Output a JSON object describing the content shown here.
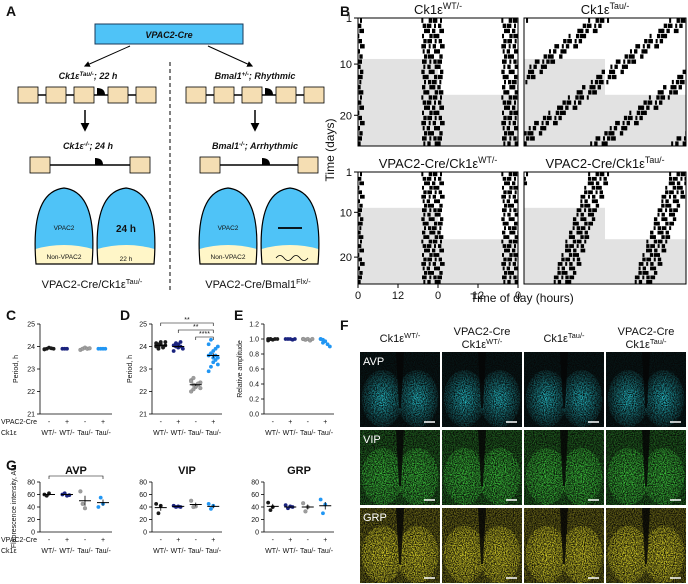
{
  "panel_labels": {
    "a": "A",
    "b": "B",
    "c": "C",
    "d": "D",
    "e": "E",
    "f": "F",
    "g": "G"
  },
  "schematic": {
    "driver": "VPAC2-Cre",
    "left": {
      "cross": [
        "Ck1ε",
        "Tau/-",
        "; 22 h"
      ],
      "result": [
        "Ck1ε",
        "-/-",
        "; 24 h"
      ],
      "scn": {
        "top": "VPAC2",
        "top_period": "24 h",
        "bottom": "Non-VPAC2",
        "bottom_period": "22 h"
      },
      "caption": [
        "VPAC2-Cre/Ck1ε",
        "Tau/-"
      ]
    },
    "right": {
      "cross": [
        "Bmal1",
        "+/-",
        "; Rhythmic"
      ],
      "result": [
        "Bmal1",
        "-/-",
        "; Arrhythmic"
      ],
      "scn": {
        "top": "VPAC2",
        "bottom": "Non-VPAC2"
      },
      "caption": [
        "VPAC2-Cre/Bmal1",
        "Flx/-"
      ]
    }
  },
  "actograms": {
    "titles": [
      [
        "Ck1ε",
        "WT/-"
      ],
      [
        "Ck1ε",
        "Tau/-"
      ],
      [
        "VPAC2-Cre/Ck1ε",
        "WT/-"
      ],
      [
        "VPAC2-Cre/Ck1ε",
        "Tau/-"
      ]
    ],
    "title_colors": [
      "#1a1a1a",
      "#8a8a8a",
      "#1a237e",
      "#2196f3"
    ],
    "ylabel": "Time (days)",
    "ylim": [
      1,
      26
    ],
    "yticks": [
      1,
      10,
      20
    ],
    "xlabel": "Time of day (hours)",
    "xlim": [
      0,
      48
    ],
    "xticks": [
      0,
      12,
      {
        "value": 24,
        "label": "0"
      },
      {
        "value": 36,
        "label": "12"
      },
      {
        "value": 48,
        "label": "0"
      }
    ]
  },
  "genotype": {
    "rows": [
      "VPAC2-Cre",
      "Ck1ε"
    ],
    "cre": [
      "-",
      "+",
      "-",
      "+"
    ],
    "ck1": [
      "WT/-",
      "WT/-",
      "Tau/-",
      "Tau/-"
    ]
  },
  "chart_data": [
    {
      "type": "dot",
      "ylabel": "Period, h",
      "ylim": [
        21,
        25
      ],
      "yticks": [
        21,
        22,
        23,
        24,
        25
      ],
      "series": [
        {
          "color": "#1a1a1a",
          "values": [
            23.88,
            23.9,
            23.95,
            23.92,
            23.9,
            23.87
          ]
        },
        {
          "color": "#1a237e",
          "values": [
            23.9,
            23.9,
            23.9
          ]
        },
        {
          "color": "#9e9e9e",
          "values": [
            23.85,
            23.9,
            23.95,
            23.9,
            23.92
          ]
        },
        {
          "color": "#2196f3",
          "values": [
            23.9,
            23.9,
            23.9,
            23.9
          ]
        }
      ]
    },
    {
      "type": "dot",
      "ylabel": "Period, h",
      "ylim": [
        21,
        25
      ],
      "yticks": [
        21,
        22,
        23,
        24,
        25
      ],
      "annotations": [
        "**",
        "**",
        "****"
      ],
      "series": [
        {
          "color": "#1a1a1a",
          "values": [
            24.0,
            24.1,
            24.2,
            23.95,
            24.05,
            24.15,
            23.9,
            24.1,
            24.0,
            24.2,
            24.05,
            23.98
          ],
          "mean": 24.05,
          "sem": 0.05
        },
        {
          "color": "#1a237e",
          "values": [
            23.8,
            24.0,
            24.1,
            24.2,
            23.9,
            24.05,
            24.15,
            23.95,
            24.0
          ],
          "mean": 24.0,
          "sem": 0.05
        },
        {
          "color": "#9e9e9e",
          "values": [
            22.0,
            22.1,
            22.2,
            22.3,
            22.4,
            22.5,
            22.6,
            22.25,
            22.35,
            22.15,
            22.45,
            22.3
          ],
          "mean": 22.3,
          "sem": 0.05
        },
        {
          "color": "#2196f3",
          "values": [
            22.9,
            23.1,
            23.3,
            23.4,
            23.5,
            23.6,
            23.7,
            23.8,
            23.9,
            24.0,
            24.1,
            24.3,
            23.5,
            23.6,
            23.2
          ],
          "mean": 23.6,
          "sem": 0.1
        }
      ]
    },
    {
      "type": "dot",
      "ylabel": "Relative amplitude",
      "ylim": [
        0,
        1.2
      ],
      "yticks": [
        {
          "value": 0,
          "label": "0.0"
        },
        0.2,
        0.4,
        0.6,
        0.8,
        {
          "value": 1,
          "label": "1.0"
        },
        1.2
      ],
      "series": [
        {
          "color": "#1a1a1a",
          "values": [
            1,
            1,
            0.99,
            1,
            1,
            0.98,
            1
          ]
        },
        {
          "color": "#1a237e",
          "values": [
            1,
            1,
            1,
            0.99,
            1
          ]
        },
        {
          "color": "#9e9e9e",
          "values": [
            1,
            0.99,
            1,
            0.98,
            1,
            1
          ]
        },
        {
          "color": "#2196f3",
          "values": [
            1,
            0.99,
            0.97,
            0.93,
            0.9,
            1,
            0.95
          ]
        }
      ]
    },
    {
      "type": "dot",
      "title": "AVP",
      "ylabel": "Fluorescence intensity, AU",
      "ylim": [
        0,
        80
      ],
      "yticks": [
        0,
        20,
        40,
        60,
        80
      ],
      "annotations": [
        "*"
      ],
      "series": [
        {
          "color": "#1a1a1a",
          "values": [
            60,
            58,
            62
          ],
          "mean": 60,
          "sem": 2
        },
        {
          "color": "#1a237e",
          "values": [
            60,
            62,
            58,
            59
          ],
          "mean": 60,
          "sem": 1
        },
        {
          "color": "#9e9e9e",
          "values": [
            65,
            45,
            38
          ],
          "mean": 50,
          "sem": 8
        },
        {
          "color": "#2196f3",
          "values": [
            40,
            55,
            45
          ],
          "mean": 47,
          "sem": 5
        }
      ]
    },
    {
      "type": "dot",
      "title": "VIP",
      "ylim": [
        0,
        80
      ],
      "yticks": [
        0,
        20,
        40,
        60,
        80
      ],
      "series": [
        {
          "color": "#1a1a1a",
          "values": [
            45,
            30,
            42
          ],
          "mean": 39,
          "sem": 5
        },
        {
          "color": "#1a237e",
          "values": [
            42,
            40,
            41,
            40
          ],
          "mean": 41,
          "sem": 1
        },
        {
          "color": "#9e9e9e",
          "values": [
            50,
            40,
            41
          ],
          "mean": 44,
          "sem": 3
        },
        {
          "color": "#2196f3",
          "values": [
            45,
            37,
            42
          ],
          "mean": 41,
          "sem": 3
        }
      ]
    },
    {
      "type": "dot",
      "title": "GRP",
      "ylim": [
        0,
        80
      ],
      "yticks": [
        0,
        20,
        40,
        60,
        80
      ],
      "series": [
        {
          "color": "#1a1a1a",
          "values": [
            47,
            35,
            40
          ],
          "mean": 41,
          "sem": 4
        },
        {
          "color": "#1a237e",
          "values": [
            43,
            38,
            41,
            40
          ],
          "mean": 40,
          "sem": 1
        },
        {
          "color": "#9e9e9e",
          "values": [
            46,
            33,
            40
          ],
          "mean": 40,
          "sem": 4
        },
        {
          "color": "#2196f3",
          "values": [
            52,
            30,
            44
          ],
          "mean": 42,
          "sem": 6
        }
      ]
    }
  ],
  "micrographs": {
    "columns": [
      {
        "genotype": [
          "Ck1ε",
          "WT/-"
        ]
      },
      {
        "driver": "VPAC2-Cre",
        "genotype": [
          "Ck1ε",
          "WT/-"
        ]
      },
      {
        "genotype": [
          "Ck1ε",
          "Tau/-"
        ]
      },
      {
        "driver": "VPAC2-Cre",
        "genotype": [
          "Ck1ε",
          "Tau/-"
        ]
      }
    ],
    "column_colors": [
      "#1a1a1a",
      "#1a237e",
      "#8a8a8a",
      "#2196f3"
    ],
    "rows": [
      "AVP",
      "VIP",
      "GRP"
    ],
    "row_colors": [
      "#27d3e0",
      "#3fd13f",
      "#e8e02a"
    ]
  }
}
